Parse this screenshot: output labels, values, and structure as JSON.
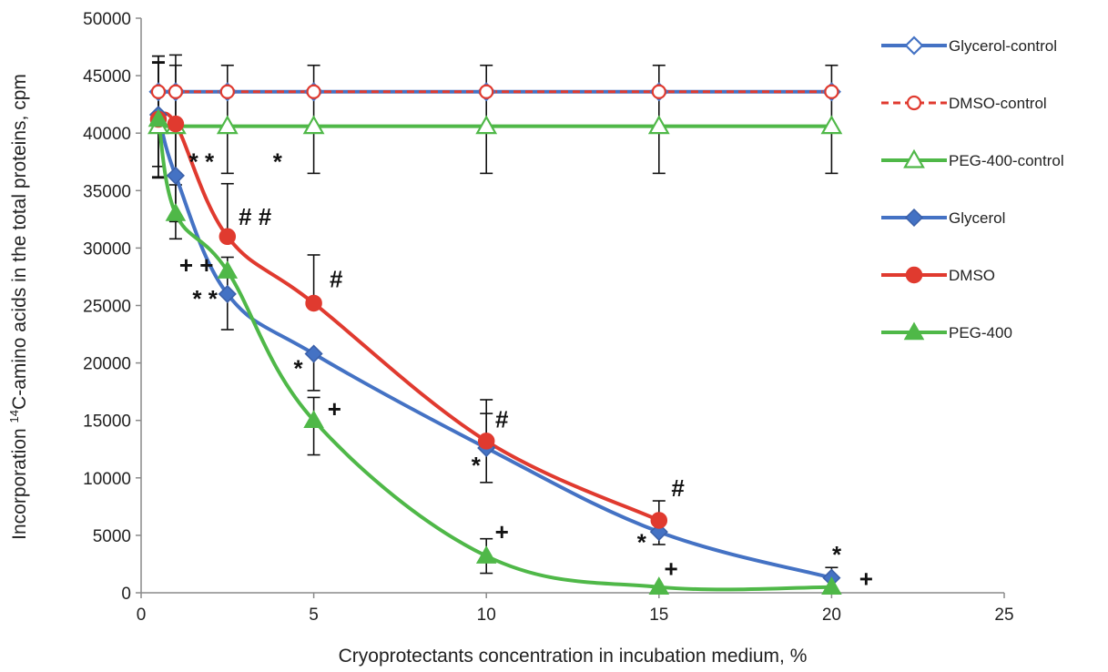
{
  "chart_data": {
    "type": "line",
    "xlabel": "Cryoprotectants concentration in incubation medium, %",
    "ylabel_prefix": "Incorporation ",
    "ylabel_sup": "14",
    "ylabel_rest": "C-amino acids in the total proteins, cpm",
    "xlim": [
      0,
      25
    ],
    "ylim": [
      0,
      50000
    ],
    "x_ticks": [
      0,
      5,
      10,
      15,
      20,
      25
    ],
    "y_ticks": [
      0,
      5000,
      10000,
      15000,
      20000,
      25000,
      30000,
      35000,
      40000,
      45000,
      50000
    ],
    "grid": false,
    "legend_position": "right",
    "series": [
      {
        "name": "Glycerol-control",
        "color": "#4472c4",
        "marker": "diamond-open",
        "dash": false,
        "x": [
          0.5,
          1,
          2.5,
          5,
          10,
          15,
          20
        ],
        "y": [
          43600,
          43600,
          43600,
          43600,
          43600,
          43600,
          43600
        ],
        "err_up": [
          3100,
          2300,
          2300,
          2300,
          2300,
          2300,
          2300
        ],
        "err_down": [
          7500,
          7100,
          7100,
          7100,
          7100,
          7100,
          7100
        ]
      },
      {
        "name": "DMSO-control",
        "color": "#e03a2f",
        "marker": "circle-open",
        "dash": true,
        "x": [
          0.5,
          1,
          2.5,
          5,
          10,
          15,
          20
        ],
        "y": [
          43600,
          43600,
          43600,
          43600,
          43600,
          43600,
          43600
        ],
        "err_up": [],
        "err_down": []
      },
      {
        "name": "PEG-400-control",
        "color": "#4fb848",
        "marker": "triangle-open",
        "dash": false,
        "x": [
          0.5,
          1,
          2.5,
          5,
          10,
          15,
          20
        ],
        "y": [
          40600,
          40600,
          40600,
          40600,
          40600,
          40600,
          40600
        ],
        "err_up": [],
        "err_down": []
      },
      {
        "name": "Glycerol",
        "color": "#4472c4",
        "marker": "diamond",
        "dash": false,
        "x": [
          0.5,
          1,
          2.5,
          5,
          10,
          15,
          20
        ],
        "y": [
          41600,
          36300,
          26000,
          20800,
          12600,
          5300,
          1300
        ],
        "err_up": [
          4500,
          4000,
          3200,
          0,
          3000,
          0,
          900
        ],
        "err_down": [
          4500,
          4000,
          3100,
          3200,
          3000,
          1100,
          0
        ]
      },
      {
        "name": "DMSO",
        "color": "#e03a2f",
        "marker": "circle",
        "dash": false,
        "x": [
          0.5,
          1,
          2.5,
          5,
          10,
          15
        ],
        "y": [
          41200,
          40800,
          31000,
          25200,
          13200,
          6300
        ],
        "err_up": [
          5500,
          6000,
          4600,
          4200,
          3600,
          1700
        ],
        "err_down": [
          0,
          0,
          0,
          0,
          0,
          0
        ]
      },
      {
        "name": "PEG-400",
        "color": "#4fb848",
        "marker": "triangle",
        "dash": false,
        "x": [
          0.5,
          1,
          2.5,
          5,
          10,
          15,
          20
        ],
        "y": [
          41200,
          33000,
          28000,
          15000,
          3200,
          500,
          500
        ],
        "err_up": [
          5000,
          2500,
          0,
          2000,
          1500,
          0,
          0
        ],
        "err_down": [
          5000,
          2200,
          0,
          3000,
          1500,
          0,
          0
        ]
      }
    ],
    "annotations": [
      {
        "text": "* *",
        "x": 1.75,
        "y": 36800
      },
      {
        "text": "*",
        "x": 3.95,
        "y": 36800
      },
      {
        "text": "# #",
        "x": 3.3,
        "y": 32000
      },
      {
        "text": "+ +",
        "x": 1.6,
        "y": 27800
      },
      {
        "text": "* *",
        "x": 1.85,
        "y": 24900
      },
      {
        "text": "#",
        "x": 5.65,
        "y": 26600
      },
      {
        "text": "*",
        "x": 4.55,
        "y": 18800
      },
      {
        "text": "+",
        "x": 5.6,
        "y": 15300
      },
      {
        "text": "#",
        "x": 10.45,
        "y": 14400
      },
      {
        "text": "*",
        "x": 9.7,
        "y": 10400
      },
      {
        "text": "+",
        "x": 10.45,
        "y": 4600
      },
      {
        "text": "#",
        "x": 15.55,
        "y": 8400
      },
      {
        "text": "*",
        "x": 14.5,
        "y": 3700
      },
      {
        "text": "+",
        "x": 15.35,
        "y": 1400
      },
      {
        "text": "*",
        "x": 20.15,
        "y": 2600
      },
      {
        "text": "+",
        "x": 21.0,
        "y": 500
      }
    ]
  }
}
